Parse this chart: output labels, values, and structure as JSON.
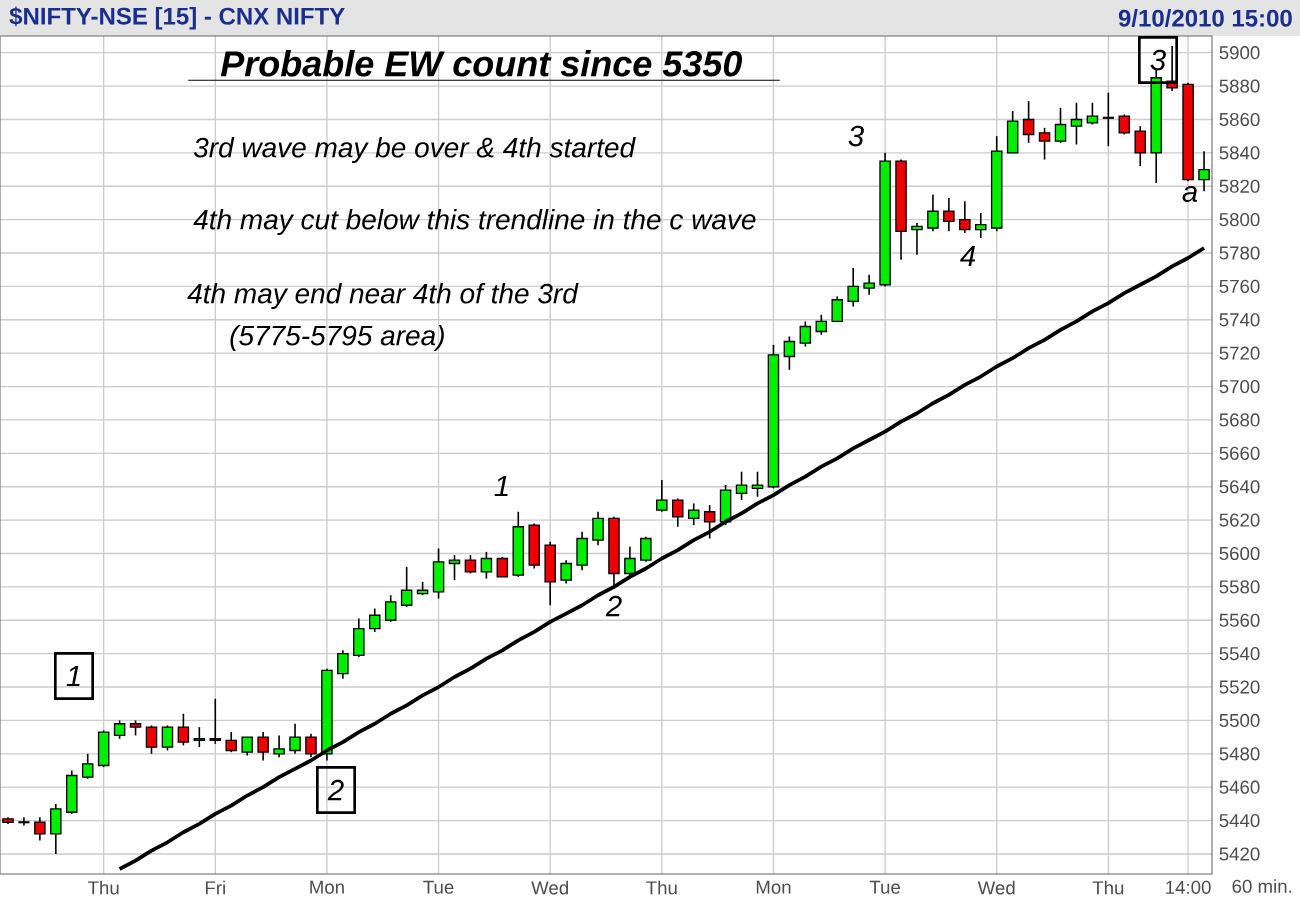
{
  "chart_data": {
    "type": "candlestick",
    "title": "$NIFTY-NSE [15] - CNX NIFTY",
    "annotations": [
      "Probable EW count since 5350",
      "3rd wave may be over & 4th started",
      "4th may cut below this trendline in the c wave",
      "4th may end near 4th of the 3rd",
      "(5775-5795 area)",
      "9/10/2010 15:00",
      "60 min.",
      "1",
      "2",
      "1",
      "2",
      "3",
      "4",
      "3",
      "a"
    ],
    "categories": [
      null,
      null,
      null,
      null,
      null,
      null,
      "Thu",
      null,
      null,
      null,
      null,
      null,
      null,
      "Fri",
      null,
      null,
      null,
      null,
      null,
      null,
      "Mon",
      null,
      null,
      null,
      null,
      null,
      null,
      "Tue",
      null,
      null,
      null,
      null,
      null,
      null,
      "Wed",
      null,
      null,
      null,
      null,
      null,
      null,
      "Thu",
      null,
      null,
      null,
      null,
      null,
      null,
      "Mon",
      null,
      null,
      null,
      null,
      null,
      null,
      "Tue",
      null,
      null,
      null,
      null,
      null,
      null,
      "Wed",
      null,
      null,
      null,
      null,
      null,
      null,
      "Thu",
      null,
      null,
      null,
      null,
      "14:00",
      null
    ],
    "ohlc": [
      [
        5441,
        5442,
        5438,
        5439
      ],
      [
        5439,
        5442,
        5437,
        5439
      ],
      [
        5439,
        5442,
        5428,
        5432
      ],
      [
        5432,
        5450,
        5420,
        5447
      ],
      [
        5445,
        5470,
        5444,
        5467
      ],
      [
        5466,
        5480,
        5465,
        5474
      ],
      [
        5473,
        5494,
        5472,
        5493
      ],
      [
        5491,
        5500,
        5489,
        5498
      ],
      [
        5498,
        5500,
        5491,
        5496
      ],
      [
        5496,
        5497,
        5480,
        5484
      ],
      [
        5484,
        5497,
        5482,
        5496
      ],
      [
        5496,
        5504,
        5485,
        5487
      ],
      [
        5488,
        5496,
        5484,
        5489
      ],
      [
        5489,
        5513,
        5486,
        5488
      ],
      [
        5488,
        5493,
        5481,
        5482
      ],
      [
        5481,
        5490,
        5479,
        5490
      ],
      [
        5490,
        5493,
        5476,
        5481
      ],
      [
        5480,
        5491,
        5478,
        5483
      ],
      [
        5482,
        5498,
        5480,
        5490
      ],
      [
        5490,
        5492,
        5478,
        5480
      ],
      [
        5480,
        5531,
        5476,
        5530
      ],
      [
        5528,
        5542,
        5525,
        5540
      ],
      [
        5539,
        5561,
        5538,
        5555
      ],
      [
        5555,
        5567,
        5553,
        5563
      ],
      [
        5560,
        5575,
        5559,
        5571
      ],
      [
        5569,
        5592,
        5568,
        5578
      ],
      [
        5576,
        5583,
        5575,
        5578
      ],
      [
        5577,
        5603,
        5573,
        5595
      ],
      [
        5594,
        5599,
        5584,
        5596
      ],
      [
        5596,
        5599,
        5588,
        5589
      ],
      [
        5589,
        5601,
        5585,
        5597
      ],
      [
        5597,
        5598,
        5586,
        5586
      ],
      [
        5587,
        5625,
        5586,
        5616
      ],
      [
        5617,
        5618,
        5591,
        5593
      ],
      [
        5605,
        5607,
        5569,
        5583
      ],
      [
        5584,
        5596,
        5582,
        5594
      ],
      [
        5593,
        5613,
        5590,
        5609
      ],
      [
        5608,
        5625,
        5605,
        5621
      ],
      [
        5621,
        5622,
        5579,
        5588
      ],
      [
        5588,
        5604,
        5586,
        5597
      ],
      [
        5596,
        5610,
        5595,
        5609
      ],
      [
        5626,
        5644,
        5625,
        5632
      ],
      [
        5632,
        5633,
        5616,
        5622
      ],
      [
        5621,
        5630,
        5617,
        5626
      ],
      [
        5625,
        5629,
        5609,
        5619
      ],
      [
        5619,
        5641,
        5617,
        5638
      ],
      [
        5636,
        5649,
        5632,
        5641
      ],
      [
        5639,
        5649,
        5634,
        5641
      ],
      [
        5640,
        5725,
        5639,
        5719
      ],
      [
        5718,
        5730,
        5710,
        5727
      ],
      [
        5726,
        5739,
        5724,
        5736
      ],
      [
        5733,
        5743,
        5731,
        5739
      ],
      [
        5739,
        5754,
        5739,
        5752
      ],
      [
        5751,
        5771,
        5748,
        5760
      ],
      [
        5759,
        5767,
        5755,
        5762
      ],
      [
        5761,
        5840,
        5760,
        5835
      ],
      [
        5835,
        5836,
        5776,
        5793
      ],
      [
        5794,
        5798,
        5779,
        5796
      ],
      [
        5795,
        5815,
        5793,
        5805
      ],
      [
        5805,
        5813,
        5793,
        5799
      ],
      [
        5800,
        5811,
        5792,
        5794
      ],
      [
        5794,
        5804,
        5789,
        5797
      ],
      [
        5795,
        5850,
        5793,
        5841
      ],
      [
        5840,
        5865,
        5840,
        5859
      ],
      [
        5860,
        5871,
        5846,
        5851
      ],
      [
        5852,
        5855,
        5836,
        5847
      ],
      [
        5847,
        5867,
        5846,
        5857
      ],
      [
        5856,
        5870,
        5845,
        5860
      ],
      [
        5858,
        5870,
        5857,
        5862
      ],
      [
        5861,
        5876,
        5844,
        5861
      ],
      [
        5862,
        5863,
        5851,
        5852
      ],
      [
        5853,
        5856,
        5832,
        5840
      ],
      [
        5840,
        5890,
        5822,
        5885
      ],
      [
        5883,
        5904,
        5877,
        5879
      ],
      [
        5881,
        5882,
        5823,
        5824
      ],
      [
        5824,
        5841,
        5817,
        5830
      ]
    ],
    "series": [
      {
        "type": "line",
        "values": [
          null,
          null,
          null,
          null,
          null,
          null,
          null,
          5411,
          5416,
          5422,
          5427,
          5433,
          5438,
          5444,
          5449,
          5455,
          5460,
          5466,
          5471,
          5476,
          5482,
          5487,
          5493,
          5498,
          5504,
          5509,
          5515,
          5520,
          5526,
          5531,
          5537,
          5542,
          5548,
          5553,
          5559,
          5564,
          5569,
          5575,
          5580,
          5586,
          5591,
          5597,
          5602,
          5608,
          5613,
          5619,
          5624,
          5630,
          5635,
          5641,
          5646,
          5652,
          5657,
          5663,
          5668,
          5673,
          5679,
          5684,
          5690,
          5695,
          5701,
          5706,
          5712,
          5717,
          5723,
          5728,
          5734,
          5739,
          5745,
          5750,
          5756,
          5761,
          5766,
          5772,
          5777,
          5783
        ],
        "color": "#000000"
      }
    ],
    "ylim": [
      5408,
      5910
    ],
    "yticks": [
      5420,
      5440,
      5460,
      5480,
      5500,
      5520,
      5540,
      5560,
      5580,
      5600,
      5620,
      5640,
      5660,
      5680,
      5700,
      5720,
      5740,
      5760,
      5780,
      5800,
      5820,
      5840,
      5860,
      5880,
      5900
    ],
    "grid": true
  }
}
